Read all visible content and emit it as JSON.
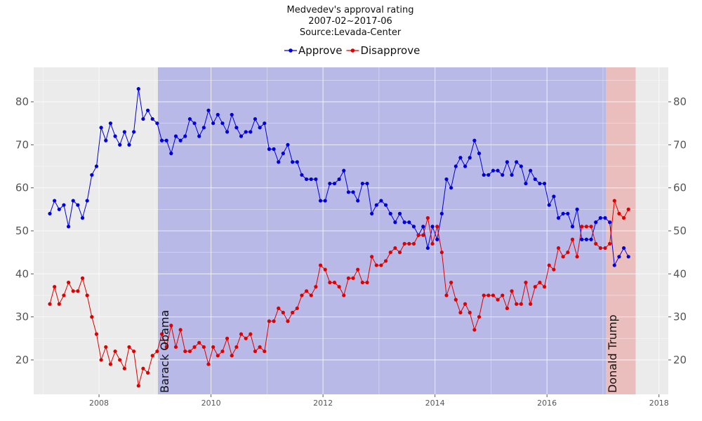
{
  "chart_data": {
    "type": "line",
    "title": "Medvedev's approval rating",
    "subtitle": "2007-02~2017-06",
    "source": "Source:Levada-Center",
    "legend_position": "top",
    "grid": true,
    "xlim": [
      "2006-11-01",
      "2018-03-01"
    ],
    "ylim": [
      12,
      88
    ],
    "x_ticks": [
      "2008",
      "2010",
      "2012",
      "2014",
      "2016",
      "2018"
    ],
    "y_ticks": [
      20,
      30,
      40,
      50,
      60,
      70,
      80
    ],
    "x": [
      "2007-02",
      "2007-03",
      "2007-04",
      "2007-05",
      "2007-06",
      "2007-07",
      "2007-08",
      "2007-09",
      "2007-10",
      "2007-11",
      "2007-12",
      "2008-01",
      "2008-02",
      "2008-03",
      "2008-04",
      "2008-05",
      "2008-06",
      "2008-07",
      "2008-08",
      "2008-09",
      "2008-10",
      "2008-11",
      "2008-12",
      "2009-01",
      "2009-02",
      "2009-03",
      "2009-04",
      "2009-05",
      "2009-06",
      "2009-07",
      "2009-08",
      "2009-09",
      "2009-10",
      "2009-11",
      "2009-12",
      "2010-01",
      "2010-02",
      "2010-03",
      "2010-04",
      "2010-05",
      "2010-06",
      "2010-07",
      "2010-08",
      "2010-09",
      "2010-10",
      "2010-11",
      "2010-12",
      "2011-01",
      "2011-02",
      "2011-03",
      "2011-04",
      "2011-05",
      "2011-06",
      "2011-07",
      "2011-08",
      "2011-09",
      "2011-10",
      "2011-11",
      "2011-12",
      "2012-01",
      "2012-02",
      "2012-03",
      "2012-04",
      "2012-05",
      "2012-06",
      "2012-07",
      "2012-08",
      "2012-09",
      "2012-10",
      "2012-11",
      "2012-12",
      "2013-01",
      "2013-02",
      "2013-03",
      "2013-04",
      "2013-05",
      "2013-06",
      "2013-07",
      "2013-08",
      "2013-09",
      "2013-10",
      "2013-11",
      "2013-12",
      "2014-01",
      "2014-02",
      "2014-03",
      "2014-04",
      "2014-05",
      "2014-06",
      "2014-07",
      "2014-08",
      "2014-09",
      "2014-10",
      "2014-11",
      "2014-12",
      "2015-01",
      "2015-02",
      "2015-03",
      "2015-04",
      "2015-05",
      "2015-06",
      "2015-07",
      "2015-08",
      "2015-09",
      "2015-10",
      "2015-11",
      "2015-12",
      "2016-01",
      "2016-02",
      "2016-03",
      "2016-04",
      "2016-05",
      "2016-06",
      "2016-07",
      "2016-08",
      "2016-09",
      "2016-10",
      "2016-11",
      "2016-12",
      "2017-01",
      "2017-02",
      "2017-03",
      "2017-04",
      "2017-05",
      "2017-06"
    ],
    "series": [
      {
        "name": "Approve",
        "color": "#0000dd",
        "values": [
          54,
          57,
          55,
          56,
          51,
          57,
          56,
          53,
          57,
          63,
          65,
          74,
          71,
          75,
          72,
          70,
          73,
          70,
          73,
          83,
          76,
          78,
          76,
          75,
          71,
          71,
          68,
          72,
          71,
          72,
          76,
          75,
          72,
          74,
          78,
          75,
          77,
          75,
          73,
          77,
          74,
          72,
          73,
          73,
          76,
          74,
          75,
          69,
          69,
          66,
          68,
          70,
          66,
          66,
          63,
          62,
          62,
          62,
          57,
          57,
          61,
          61,
          62,
          64,
          59,
          59,
          57,
          61,
          61,
          54,
          56,
          57,
          56,
          54,
          52,
          54,
          52,
          52,
          51,
          49,
          51,
          46,
          51,
          48,
          54,
          62,
          60,
          65,
          67,
          65,
          67,
          71,
          68,
          63,
          63,
          64,
          64,
          63,
          66,
          63,
          66,
          65,
          61,
          64,
          62,
          61,
          61,
          56,
          58,
          53,
          54,
          54,
          51,
          55,
          48,
          48,
          48,
          52,
          53,
          53,
          52,
          42,
          44,
          46,
          44
        ]
      },
      {
        "name": "Disapprove",
        "color": "#dd0000",
        "values": [
          33,
          37,
          33,
          35,
          38,
          36,
          36,
          39,
          35,
          30,
          26,
          20,
          23,
          19,
          22,
          20,
          18,
          23,
          22,
          14,
          18,
          17,
          21,
          22,
          26,
          23,
          28,
          23,
          27,
          22,
          22,
          23,
          24,
          23,
          19,
          23,
          21,
          22,
          25,
          21,
          23,
          26,
          25,
          26,
          22,
          23,
          22,
          29,
          29,
          32,
          31,
          29,
          31,
          32,
          35,
          36,
          35,
          37,
          42,
          41,
          38,
          38,
          37,
          35,
          39,
          39,
          41,
          38,
          38,
          44,
          42,
          42,
          43,
          45,
          46,
          45,
          47,
          47,
          47,
          49,
          49,
          53,
          47,
          51,
          45,
          35,
          38,
          34,
          31,
          33,
          31,
          27,
          30,
          35,
          35,
          35,
          34,
          35,
          32,
          36,
          33,
          33,
          38,
          33,
          37,
          38,
          37,
          42,
          41,
          46,
          44,
          45,
          48,
          44,
          51,
          51,
          51,
          47,
          46,
          46,
          47,
          57,
          54,
          53,
          55
        ]
      }
    ],
    "bands": [
      {
        "label": "Barack Obama",
        "start": "2009-01-20",
        "end": "2017-01-20",
        "color": "#5b5be0"
      },
      {
        "label": "Donald Trump",
        "start": "2017-01-20",
        "end": "2017-08-01",
        "color": "#ec6b6b"
      }
    ]
  }
}
